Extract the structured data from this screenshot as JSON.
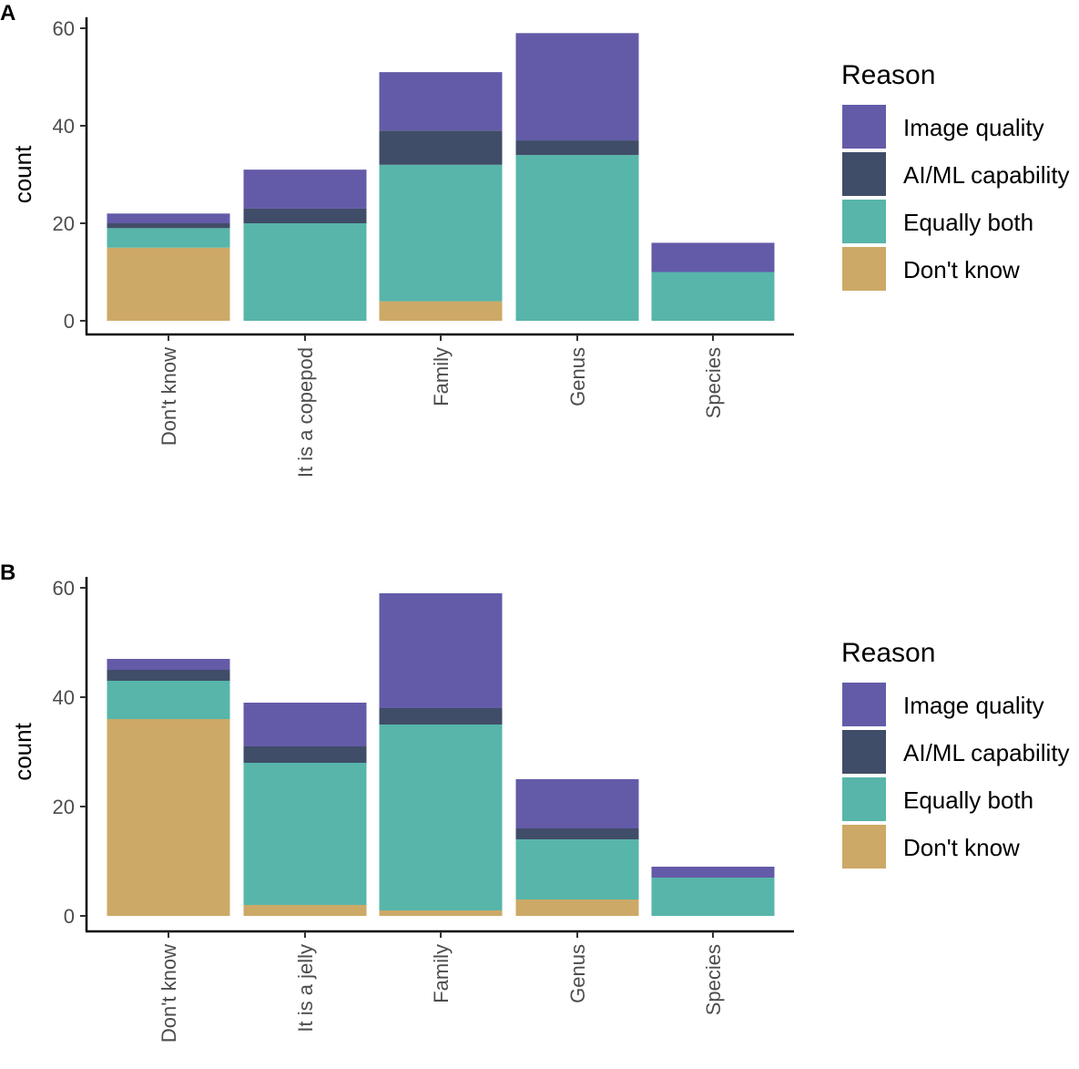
{
  "colors": {
    "Image quality": "#635BA8",
    "AI/ML capability": "#404D68",
    "Equally both": "#57B5AA",
    "Don't know": "#CDA967"
  },
  "chart_data": [
    {
      "type": "bar",
      "stacked": true,
      "panel": "A",
      "ylabel": "count",
      "ylim": [
        0,
        60
      ],
      "yticks": [
        0,
        20,
        40,
        60
      ],
      "categories": [
        "Don't know",
        "It is a copepod",
        "Family",
        "Genus",
        "Species"
      ],
      "legend_title": "Reason",
      "legend": [
        "Image quality",
        "AI/ML capability",
        "Equally both",
        "Don't know"
      ],
      "legend_position": "right",
      "series": [
        {
          "name": "Don't know",
          "values": [
            15,
            0,
            4,
            0,
            0
          ]
        },
        {
          "name": "Equally both",
          "values": [
            4,
            20,
            28,
            34,
            10
          ]
        },
        {
          "name": "AI/ML capability",
          "values": [
            1,
            3,
            7,
            3,
            0
          ]
        },
        {
          "name": "Image quality",
          "values": [
            2,
            8,
            12,
            22,
            6
          ]
        }
      ]
    },
    {
      "type": "bar",
      "stacked": true,
      "panel": "B",
      "ylabel": "count",
      "ylim": [
        0,
        60
      ],
      "yticks": [
        0,
        20,
        40,
        60
      ],
      "categories": [
        "Don't know",
        "It is a jelly",
        "Family",
        "Genus",
        "Species"
      ],
      "legend_title": "Reason",
      "legend": [
        "Image quality",
        "AI/ML capability",
        "Equally both",
        "Don't know"
      ],
      "legend_position": "right",
      "series": [
        {
          "name": "Don't know",
          "values": [
            36,
            2,
            1,
            3,
            0
          ]
        },
        {
          "name": "Equally both",
          "values": [
            7,
            26,
            34,
            11,
            7
          ]
        },
        {
          "name": "AI/ML capability",
          "values": [
            2,
            3,
            3,
            2,
            0
          ]
        },
        {
          "name": "Image quality",
          "values": [
            2,
            8,
            21,
            9,
            2
          ]
        }
      ]
    }
  ]
}
